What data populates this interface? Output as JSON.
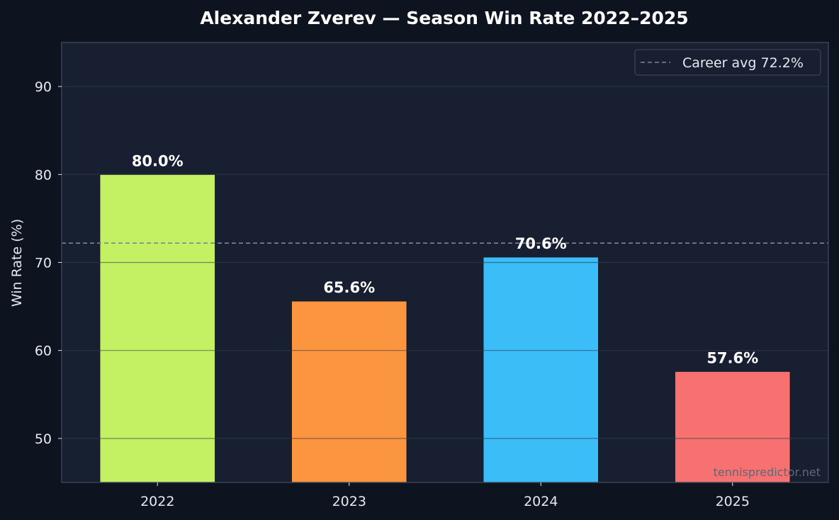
{
  "chart_data": {
    "type": "bar",
    "title": "Alexander Zverev — Season Win Rate 2022–2025",
    "xlabel": "",
    "ylabel": "Win Rate (%)",
    "categories": [
      "2022",
      "2023",
      "2024",
      "2025"
    ],
    "values": [
      80.0,
      65.6,
      70.6,
      57.6
    ],
    "value_labels": [
      "80.0%",
      "65.6%",
      "70.6%",
      "57.6%"
    ],
    "bar_colors": [
      "#c4f164",
      "#fb953f",
      "#3bbdf8",
      "#f87171"
    ],
    "ylim": [
      45,
      95
    ],
    "yticks": [
      50,
      60,
      70,
      80,
      90
    ],
    "grid": true,
    "reference_line": {
      "value": 72.2,
      "label": "Career avg 72.2%",
      "color": "#7b8597"
    },
    "legend_position": "top-right",
    "watermark": "tennispredictor.net"
  },
  "colors": {
    "background": "#0e1320",
    "plot_background": "#181f30",
    "grid": "#263244",
    "spine": "#3a4556"
  }
}
